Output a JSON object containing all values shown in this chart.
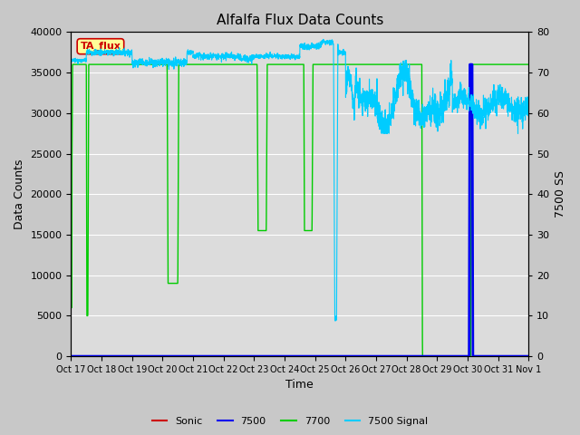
{
  "title": "Alfalfa Flux Data Counts",
  "xlabel": "Time",
  "ylabel_left": "Data Counts",
  "ylabel_right": "7500 SS",
  "ylim_left": [
    0,
    40000
  ],
  "ylim_right": [
    0,
    80
  ],
  "annotation_text": "TA_flux",
  "annotation_color": "#cc0000",
  "annotation_bg": "#ffff99",
  "fig_bg": "#c8c8c8",
  "plot_bg": "#dcdcdc",
  "colors": {
    "Sonic": "#cc0000",
    "7500": "#0000ee",
    "7700": "#00cc00",
    "7500 Signal": "#00ccff"
  },
  "xtick_labels": [
    "Oct 17",
    "Oct 18",
    "Oct 19",
    "Oct 20",
    "Oct 21",
    "Oct 22",
    "Oct 23",
    "Oct 24",
    "Oct 25",
    "Oct 26",
    "Oct 27",
    "Oct 28",
    "Oct 29",
    "Oct 30",
    "Oct 31",
    "Nov 1"
  ],
  "yticks_left": [
    0,
    5000,
    10000,
    15000,
    20000,
    25000,
    30000,
    35000,
    40000
  ],
  "yticks_right": [
    0,
    10,
    20,
    30,
    40,
    50,
    60,
    70,
    80
  ]
}
